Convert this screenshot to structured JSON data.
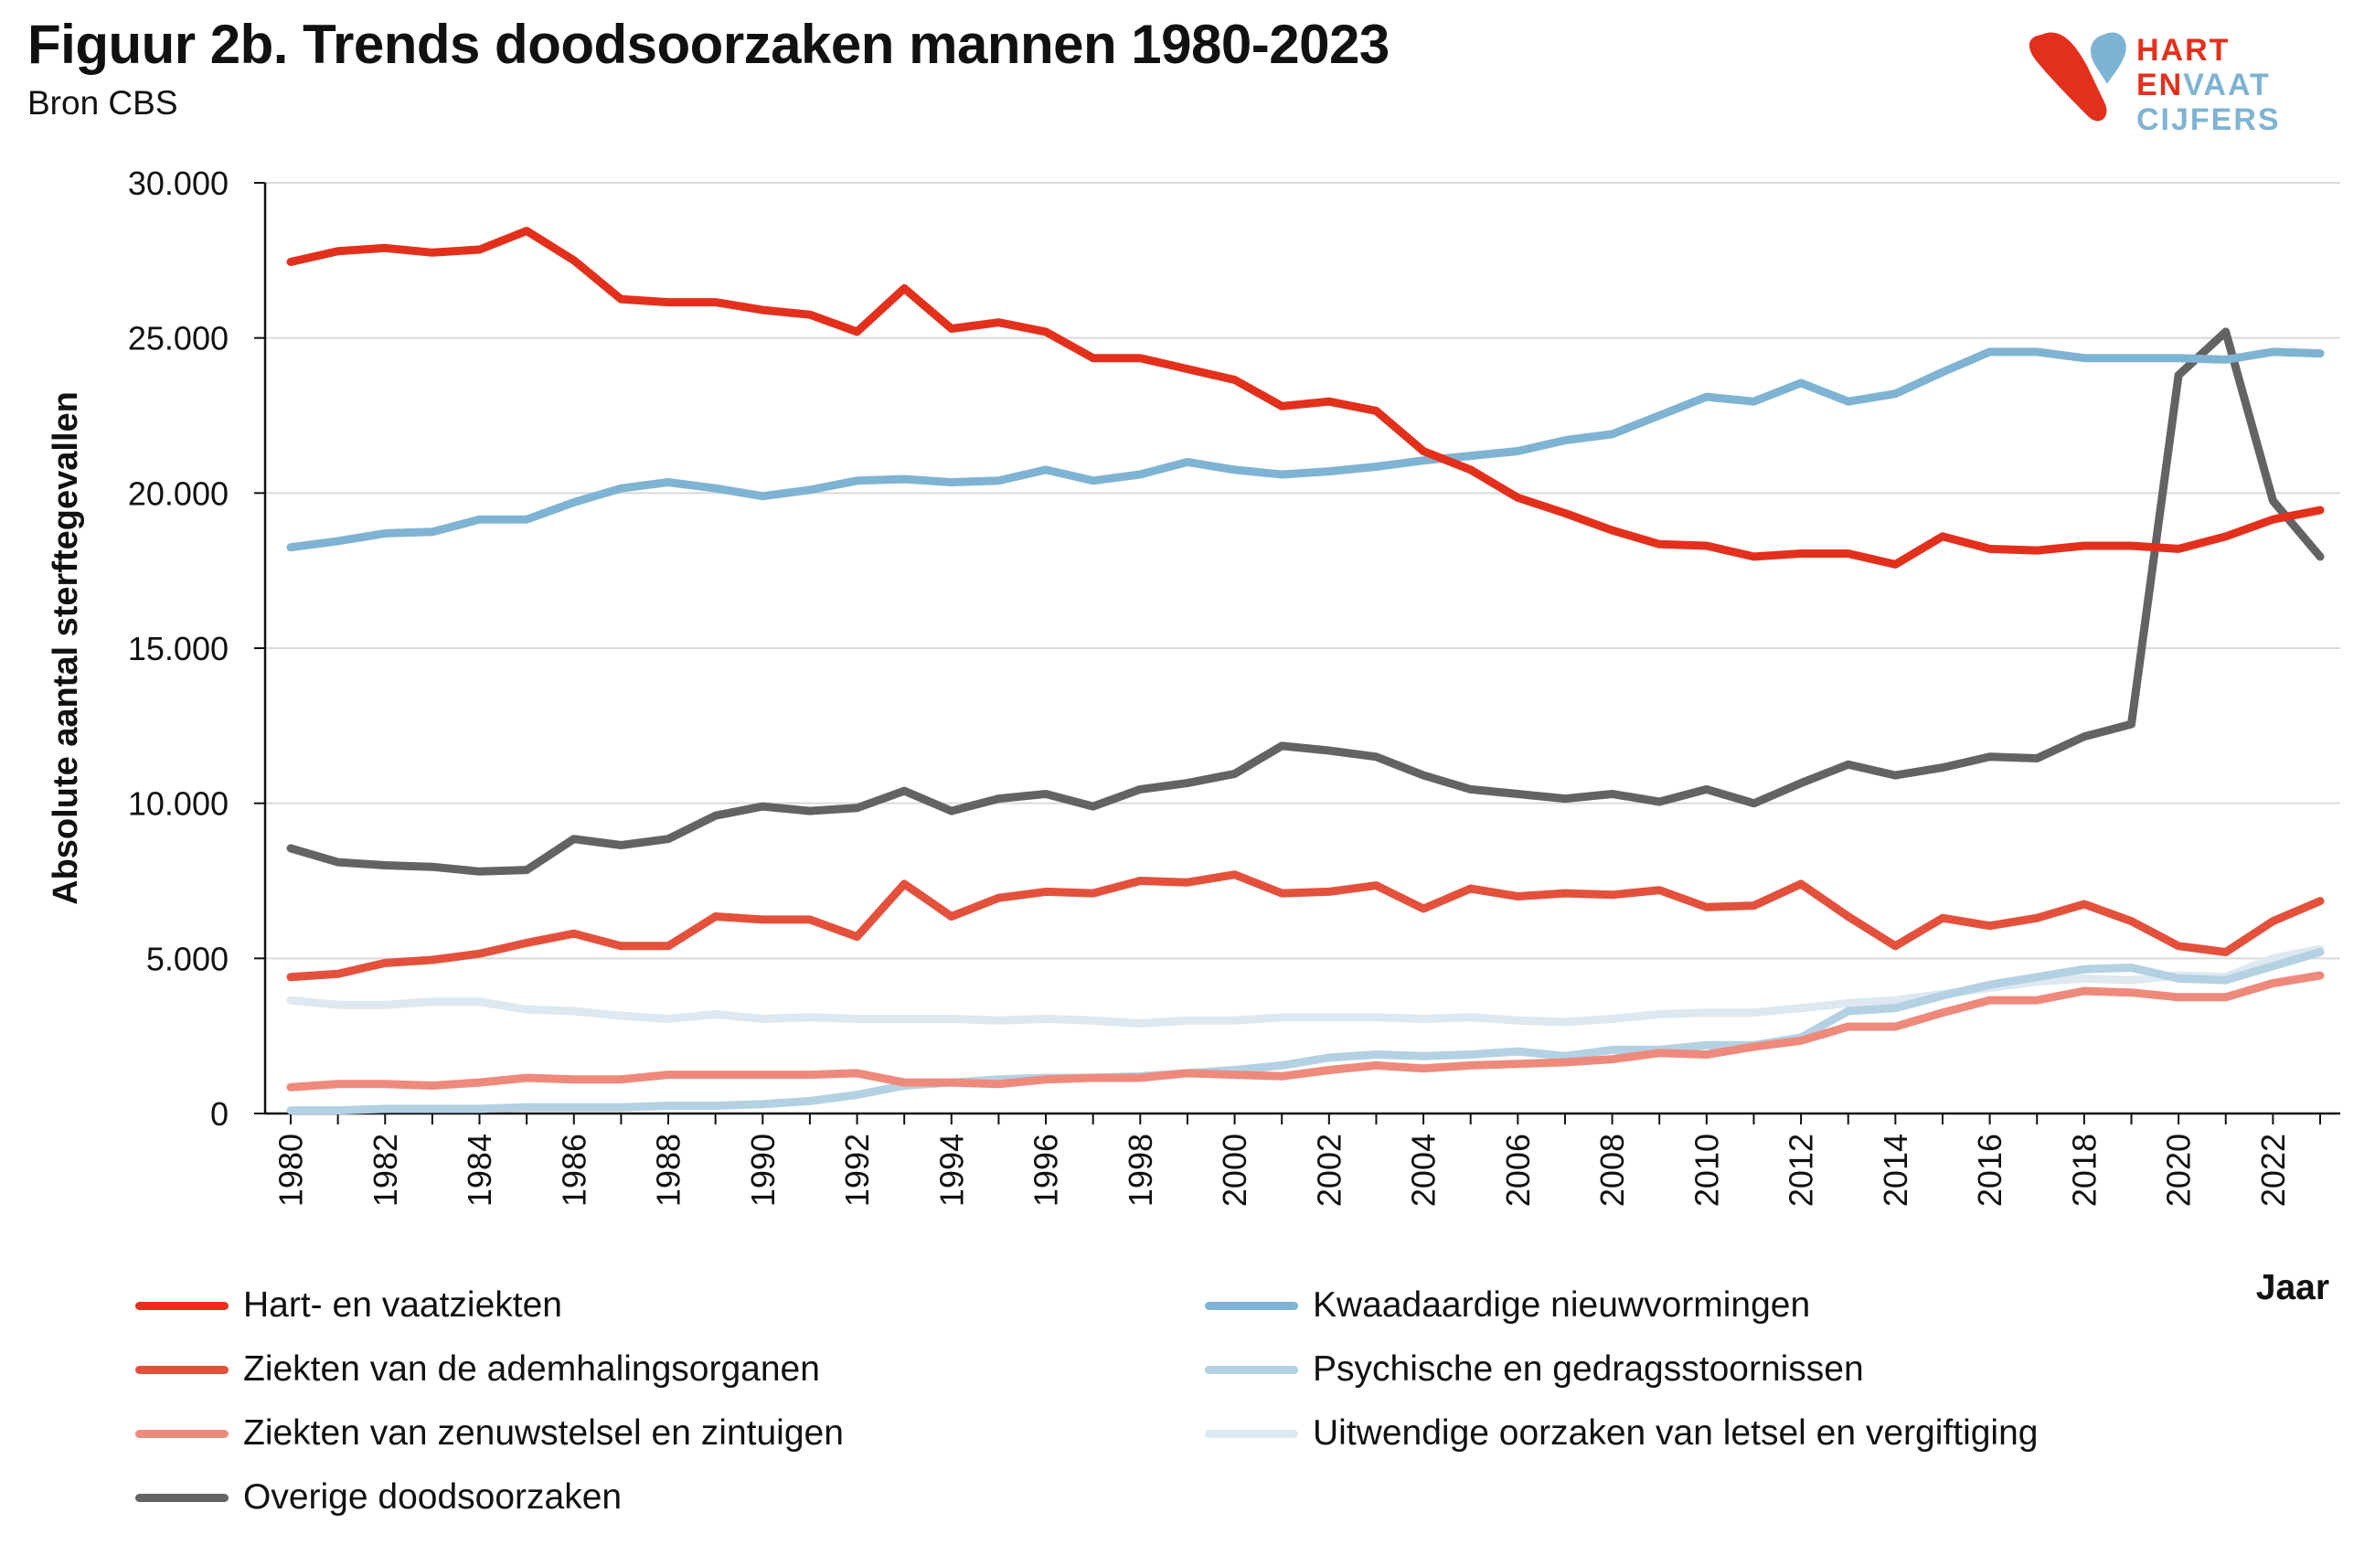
{
  "header": {
    "title": "Figuur 2b. Trends doodsoorzaken mannen 1980-2023",
    "subtitle": "Bron CBS"
  },
  "logo": {
    "line1": "HART",
    "line2a": "EN",
    "line2b": "VAAT",
    "line3": "CIJFERS",
    "red": "#e3301c",
    "blue": "#7fb3d3"
  },
  "chart_data": {
    "type": "line",
    "title": "Figuur 2b. Trends doodsoorzaken mannen 1980-2023",
    "subtitle": "Bron CBS",
    "xlabel": "Jaar",
    "ylabel": "Absolute aantal sterftegevallen",
    "ylim": [
      0,
      30000
    ],
    "xlim": [
      1980,
      2023
    ],
    "y_ticks": [
      0,
      5000,
      10000,
      15000,
      20000,
      25000,
      30000
    ],
    "y_tick_labels": [
      "0",
      "5.000",
      "10.000",
      "15.000",
      "20.000",
      "25.000",
      "30.000"
    ],
    "x_ticks": [
      1980,
      1982,
      1984,
      1986,
      1988,
      1990,
      1992,
      1994,
      1996,
      1998,
      2000,
      2002,
      2004,
      2006,
      2008,
      2010,
      2012,
      2014,
      2016,
      2018,
      2020,
      2022
    ],
    "x_tick_labels": [
      "1980",
      "1982",
      "1984",
      "1986",
      "1988",
      "1990",
      "1992",
      "1994",
      "1996",
      "1998",
      "2000",
      "2002",
      "2004",
      "2006",
      "2008",
      "2010",
      "2012",
      "2014",
      "2016",
      "2018",
      "2020",
      "2022"
    ],
    "grid": "horizontal",
    "legend_position": "bottom",
    "x": [
      1980,
      1981,
      1982,
      1983,
      1984,
      1985,
      1986,
      1987,
      1988,
      1989,
      1990,
      1991,
      1992,
      1993,
      1994,
      1995,
      1996,
      1997,
      1998,
      1999,
      2000,
      2001,
      2002,
      2003,
      2004,
      2005,
      2006,
      2007,
      2008,
      2009,
      2010,
      2011,
      2012,
      2013,
      2014,
      2015,
      2016,
      2017,
      2018,
      2019,
      2020,
      2021,
      2022,
      2023
    ],
    "series": [
      {
        "name": "Hart- en vaatziekten",
        "color": "#e3301c",
        "values": [
          27450,
          27800,
          27900,
          27750,
          27850,
          28450,
          27500,
          26250,
          26150,
          26150,
          25900,
          25750,
          25200,
          26600,
          25300,
          25500,
          25200,
          24350,
          24350,
          24000,
          23650,
          22800,
          22950,
          22650,
          21350,
          20750,
          19850,
          19350,
          18800,
          18350,
          18300,
          17950,
          18050,
          18050,
          17700,
          18600,
          18200,
          18150,
          18300,
          18300,
          18200,
          18600,
          19150,
          19450
        ]
      },
      {
        "name": "Kwaadaardige nieuwvormingen",
        "color": "#7fb3d3",
        "values": [
          18250,
          18450,
          18700,
          18750,
          19150,
          19150,
          19700,
          20150,
          20350,
          20150,
          19900,
          20100,
          20400,
          20450,
          20350,
          20400,
          20750,
          20400,
          20600,
          21000,
          20750,
          20600,
          20700,
          20850,
          21050,
          21200,
          21350,
          21700,
          21900,
          22500,
          23100,
          22950,
          23550,
          22950,
          23200,
          23900,
          24550,
          24550,
          24350,
          24350,
          24350,
          24300,
          24550,
          24500
        ]
      },
      {
        "name": "Ziekten van de ademhalingsorganen",
        "color": "#e3513c",
        "values": [
          4400,
          4500,
          4850,
          4950,
          5150,
          5500,
          5800,
          5400,
          5400,
          6350,
          6250,
          6250,
          5700,
          7400,
          6350,
          6950,
          7150,
          7100,
          7500,
          7450,
          7700,
          7100,
          7150,
          7350,
          6600,
          7250,
          7000,
          7100,
          7050,
          7200,
          6650,
          6700,
          7400,
          6350,
          5400,
          6300,
          6050,
          6300,
          6750,
          6200,
          5400,
          5200,
          6200,
          6850
        ]
      },
      {
        "name": "Psychische en gedragsstoornissen",
        "color": "#b3d1e3",
        "values": [
          100,
          100,
          150,
          150,
          150,
          200,
          200,
          200,
          250,
          250,
          300,
          400,
          600,
          900,
          1000,
          1100,
          1150,
          1150,
          1200,
          1300,
          1400,
          1550,
          1800,
          1900,
          1850,
          1900,
          2000,
          1850,
          2050,
          2050,
          2200,
          2200,
          2450,
          3300,
          3400,
          3800,
          4150,
          4400,
          4650,
          4700,
          4350,
          4300,
          4750,
          5200
        ]
      },
      {
        "name": "Ziekten van zenuwstelsel en zintuigen",
        "color": "#ee8a7c",
        "values": [
          850,
          950,
          950,
          900,
          1000,
          1150,
          1100,
          1100,
          1250,
          1250,
          1250,
          1250,
          1300,
          1000,
          1000,
          950,
          1100,
          1150,
          1150,
          1300,
          1250,
          1200,
          1400,
          1550,
          1450,
          1550,
          1600,
          1650,
          1750,
          1950,
          1900,
          2150,
          2350,
          2800,
          2800,
          3250,
          3650,
          3650,
          3950,
          3900,
          3750,
          3750,
          4200,
          4450
        ]
      },
      {
        "name": "Uitwendige oorzaken van letsel en vergiftiging",
        "color": "#dde8f1",
        "values": [
          3650,
          3500,
          3500,
          3600,
          3600,
          3350,
          3300,
          3150,
          3050,
          3200,
          3050,
          3100,
          3050,
          3050,
          3050,
          3000,
          3050,
          3000,
          2900,
          3000,
          3000,
          3100,
          3100,
          3100,
          3050,
          3100,
          3000,
          2950,
          3050,
          3200,
          3250,
          3250,
          3400,
          3550,
          3650,
          3850,
          4050,
          4250,
          4350,
          4300,
          4450,
          4400,
          5000,
          5300
        ]
      },
      {
        "name": "Overige doodsoorzaken",
        "color": "#636363",
        "values": [
          8550,
          8100,
          8000,
          7950,
          7800,
          7850,
          8850,
          8650,
          8850,
          9600,
          9900,
          9750,
          9850,
          10400,
          9750,
          10150,
          10300,
          9900,
          10450,
          10650,
          10950,
          11850,
          11700,
          11500,
          10900,
          10450,
          10300,
          10150,
          10300,
          10050,
          10450,
          10000,
          10650,
          11250,
          10900,
          11150,
          11500,
          11450,
          12150,
          12550,
          23800,
          25200,
          19750,
          17950
        ]
      }
    ]
  },
  "legend": [
    {
      "label": "Hart- en vaatziekten",
      "color": "#e3301c"
    },
    {
      "label": "Kwaadaardige nieuwvormingen",
      "color": "#7fb3d3"
    },
    {
      "label": "Ziekten van de ademhalingsorganen",
      "color": "#e3513c"
    },
    {
      "label": "Psychische en gedragsstoornissen",
      "color": "#b3d1e3"
    },
    {
      "label": "Ziekten van zenuwstelsel en zintuigen",
      "color": "#ee8a7c"
    },
    {
      "label": "Uitwendige oorzaken van letsel en vergiftiging",
      "color": "#dde8f1"
    },
    {
      "label": "Overige doodsoorzaken",
      "color": "#636363"
    }
  ]
}
